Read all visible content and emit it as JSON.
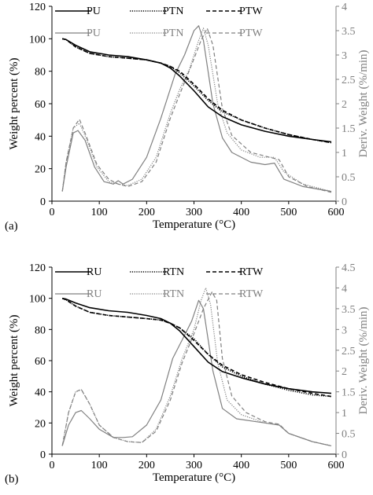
{
  "chart_data": [
    {
      "type": "line",
      "panel_label": "(a)",
      "xlabel": "Temperature (°C)",
      "ylabel": "Weight percent (%)",
      "y2label": "Deriv. Weight (%/min)",
      "xlim": [
        0,
        600
      ],
      "ylim": [
        0,
        120
      ],
      "y2lim": [
        0,
        4
      ],
      "xticks": [
        "0",
        "100",
        "200",
        "300",
        "400",
        "500",
        "600"
      ],
      "yticks": [
        "0",
        "20",
        "40",
        "60",
        "80",
        "100",
        "120"
      ],
      "y2ticks": [
        "0",
        "0.5",
        "1",
        "1.5",
        "2",
        "2.5",
        "3",
        "3.5",
        "4"
      ],
      "grid": false,
      "legend": "top",
      "colors": {
        "weight": "#000000",
        "deriv": "#808080"
      },
      "weight_series": [
        {
          "name": "PU",
          "dash": "solid",
          "points": [
            [
              22,
              100
            ],
            [
              30,
              99.5
            ],
            [
              50,
              96
            ],
            [
              80,
              92
            ],
            [
              120,
              90
            ],
            [
              160,
              89
            ],
            [
              200,
              87
            ],
            [
              230,
              85
            ],
            [
              250,
              82
            ],
            [
              270,
              77
            ],
            [
              300,
              68
            ],
            [
              330,
              58
            ],
            [
              360,
              52
            ],
            [
              400,
              47
            ],
            [
              450,
              43
            ],
            [
              500,
              40
            ],
            [
              550,
              38
            ],
            [
              590,
              36.5
            ]
          ]
        },
        {
          "name": "PTN",
          "dash": "dot",
          "points": [
            [
              22,
              100
            ],
            [
              30,
              99.5
            ],
            [
              50,
              95
            ],
            [
              80,
              91
            ],
            [
              120,
              89
            ],
            [
              160,
              88
            ],
            [
              200,
              87
            ],
            [
              230,
              85
            ],
            [
              250,
              83
            ],
            [
              270,
              79
            ],
            [
              300,
              71
            ],
            [
              330,
              62
            ],
            [
              360,
              55
            ],
            [
              400,
              50
            ],
            [
              450,
              45
            ],
            [
              500,
              41
            ],
            [
              550,
              38
            ],
            [
              590,
              36
            ]
          ]
        },
        {
          "name": "PTW",
          "dash": "dash",
          "points": [
            [
              22,
              100
            ],
            [
              30,
              99.5
            ],
            [
              50,
              95
            ],
            [
              80,
              91
            ],
            [
              120,
              89
            ],
            [
              160,
              88
            ],
            [
              200,
              87
            ],
            [
              230,
              85
            ],
            [
              250,
              83
            ],
            [
              270,
              80
            ],
            [
              300,
              72
            ],
            [
              330,
              63
            ],
            [
              360,
              56
            ],
            [
              400,
              50
            ],
            [
              450,
              45
            ],
            [
              500,
              41
            ],
            [
              550,
              38
            ],
            [
              590,
              36
            ]
          ]
        }
      ],
      "deriv_series": [
        {
          "name": "PU",
          "dash": "solid",
          "points": [
            [
              22,
              0.2
            ],
            [
              30,
              0.7
            ],
            [
              45,
              1.4
            ],
            [
              55,
              1.45
            ],
            [
              70,
              1.25
            ],
            [
              90,
              0.7
            ],
            [
              110,
              0.4
            ],
            [
              130,
              0.35
            ],
            [
              140,
              0.42
            ],
            [
              150,
              0.35
            ],
            [
              170,
              0.45
            ],
            [
              200,
              0.9
            ],
            [
              230,
              1.7
            ],
            [
              260,
              2.6
            ],
            [
              280,
              3.0
            ],
            [
              300,
              3.5
            ],
            [
              310,
              3.6
            ],
            [
              320,
              3.3
            ],
            [
              340,
              2.0
            ],
            [
              360,
              1.3
            ],
            [
              380,
              1.0
            ],
            [
              420,
              0.8
            ],
            [
              450,
              0.75
            ],
            [
              470,
              0.78
            ],
            [
              490,
              0.45
            ],
            [
              530,
              0.3
            ],
            [
              590,
              0.2
            ]
          ]
        },
        {
          "name": "PTN",
          "dash": "dot",
          "points": [
            [
              22,
              0.2
            ],
            [
              30,
              0.8
            ],
            [
              45,
              1.5
            ],
            [
              58,
              1.6
            ],
            [
              72,
              1.3
            ],
            [
              95,
              0.7
            ],
            [
              120,
              0.4
            ],
            [
              140,
              0.35
            ],
            [
              160,
              0.32
            ],
            [
              190,
              0.45
            ],
            [
              220,
              0.9
            ],
            [
              250,
              1.8
            ],
            [
              270,
              2.3
            ],
            [
              290,
              2.7
            ],
            [
              310,
              3.3
            ],
            [
              320,
              3.55
            ],
            [
              330,
              3.2
            ],
            [
              350,
              2.0
            ],
            [
              370,
              1.4
            ],
            [
              400,
              1.05
            ],
            [
              440,
              0.9
            ],
            [
              470,
              0.9
            ],
            [
              490,
              0.6
            ],
            [
              530,
              0.35
            ],
            [
              590,
              0.2
            ]
          ]
        },
        {
          "name": "PTW",
          "dash": "dash",
          "points": [
            [
              22,
              0.2
            ],
            [
              30,
              0.8
            ],
            [
              45,
              1.5
            ],
            [
              58,
              1.68
            ],
            [
              72,
              1.35
            ],
            [
              95,
              0.75
            ],
            [
              120,
              0.45
            ],
            [
              140,
              0.35
            ],
            [
              160,
              0.3
            ],
            [
              190,
              0.4
            ],
            [
              220,
              0.8
            ],
            [
              250,
              1.7
            ],
            [
              270,
              2.2
            ],
            [
              295,
              2.8
            ],
            [
              315,
              3.3
            ],
            [
              328,
              3.55
            ],
            [
              340,
              3.2
            ],
            [
              360,
              1.9
            ],
            [
              380,
              1.35
            ],
            [
              420,
              1.0
            ],
            [
              460,
              0.9
            ],
            [
              480,
              0.85
            ],
            [
              500,
              0.5
            ],
            [
              540,
              0.3
            ],
            [
              590,
              0.18
            ]
          ]
        }
      ]
    },
    {
      "type": "line",
      "panel_label": "(b)",
      "xlabel": "Temperature (°C)",
      "ylabel": "Weight percent (%)",
      "y2label": "Deriv. Weight (%/min)",
      "xlim": [
        0,
        600
      ],
      "ylim": [
        0,
        120
      ],
      "y2lim": [
        0,
        4.5
      ],
      "xticks": [
        "0",
        "100",
        "200",
        "300",
        "400",
        "500",
        "600"
      ],
      "yticks": [
        "0",
        "20",
        "40",
        "60",
        "80",
        "100",
        "120"
      ],
      "y2ticks": [
        "0",
        "0.5",
        "1",
        "1.5",
        "2",
        "2.5",
        "3",
        "3.5",
        "4",
        "4.5"
      ],
      "grid": false,
      "legend": "top",
      "colors": {
        "weight": "#000000",
        "deriv": "#808080"
      },
      "weight_series": [
        {
          "name": "RU",
          "dash": "solid",
          "points": [
            [
              22,
              100
            ],
            [
              30,
              99.5
            ],
            [
              50,
              97
            ],
            [
              80,
              94
            ],
            [
              120,
              92
            ],
            [
              160,
              91
            ],
            [
              200,
              89
            ],
            [
              230,
              87
            ],
            [
              250,
              84
            ],
            [
              270,
              79
            ],
            [
              300,
              69
            ],
            [
              330,
              59
            ],
            [
              360,
              53
            ],
            [
              400,
              49
            ],
            [
              450,
              45
            ],
            [
              500,
              42
            ],
            [
              550,
              40
            ],
            [
              590,
              39
            ]
          ]
        },
        {
          "name": "RTN",
          "dash": "dot",
          "points": [
            [
              22,
              100
            ],
            [
              30,
              99
            ],
            [
              50,
              95
            ],
            [
              80,
              91
            ],
            [
              120,
              89
            ],
            [
              160,
              88
            ],
            [
              200,
              87
            ],
            [
              230,
              86
            ],
            [
              250,
              84
            ],
            [
              270,
              81
            ],
            [
              300,
              74
            ],
            [
              330,
              64
            ],
            [
              360,
              56
            ],
            [
              400,
              50
            ],
            [
              450,
              45
            ],
            [
              500,
              41
            ],
            [
              550,
              38
            ],
            [
              590,
              37
            ]
          ]
        },
        {
          "name": "RTW",
          "dash": "dash",
          "points": [
            [
              22,
              100
            ],
            [
              30,
              99
            ],
            [
              50,
              95
            ],
            [
              80,
              91
            ],
            [
              120,
              89
            ],
            [
              160,
              88
            ],
            [
              200,
              87
            ],
            [
              230,
              86
            ],
            [
              250,
              84
            ],
            [
              270,
              81
            ],
            [
              300,
              73
            ],
            [
              330,
              64
            ],
            [
              360,
              57
            ],
            [
              400,
              51
            ],
            [
              450,
              46
            ],
            [
              500,
              42
            ],
            [
              550,
              39
            ],
            [
              590,
              37
            ]
          ]
        }
      ],
      "deriv_series": [
        {
          "name": "RU",
          "dash": "solid",
          "points": [
            [
              22,
              0.2
            ],
            [
              35,
              0.7
            ],
            [
              50,
              1.0
            ],
            [
              62,
              1.05
            ],
            [
              80,
              0.85
            ],
            [
              100,
              0.6
            ],
            [
              130,
              0.4
            ],
            [
              150,
              0.4
            ],
            [
              170,
              0.42
            ],
            [
              200,
              0.7
            ],
            [
              230,
              1.3
            ],
            [
              255,
              2.3
            ],
            [
              275,
              2.75
            ],
            [
              295,
              3.2
            ],
            [
              310,
              3.7
            ],
            [
              320,
              3.5
            ],
            [
              340,
              2.0
            ],
            [
              360,
              1.1
            ],
            [
              390,
              0.85
            ],
            [
              450,
              0.75
            ],
            [
              480,
              0.7
            ],
            [
              500,
              0.5
            ],
            [
              550,
              0.3
            ],
            [
              590,
              0.2
            ]
          ]
        },
        {
          "name": "RTN",
          "dash": "dot",
          "points": [
            [
              22,
              0.2
            ],
            [
              35,
              1.0
            ],
            [
              50,
              1.5
            ],
            [
              62,
              1.55
            ],
            [
              80,
              1.2
            ],
            [
              100,
              0.7
            ],
            [
              130,
              0.4
            ],
            [
              160,
              0.3
            ],
            [
              190,
              0.28
            ],
            [
              220,
              0.6
            ],
            [
              250,
              1.4
            ],
            [
              275,
              2.3
            ],
            [
              300,
              3.0
            ],
            [
              315,
              3.7
            ],
            [
              325,
              4.0
            ],
            [
              335,
              3.6
            ],
            [
              350,
              2.2
            ],
            [
              370,
              1.3
            ],
            [
              400,
              0.95
            ],
            [
              450,
              0.75
            ],
            [
              480,
              0.7
            ],
            [
              500,
              0.5
            ],
            [
              550,
              0.3
            ],
            [
              590,
              0.2
            ]
          ]
        },
        {
          "name": "RTW",
          "dash": "dash",
          "points": [
            [
              22,
              0.2
            ],
            [
              35,
              1.0
            ],
            [
              50,
              1.5
            ],
            [
              62,
              1.56
            ],
            [
              80,
              1.2
            ],
            [
              100,
              0.7
            ],
            [
              130,
              0.4
            ],
            [
              160,
              0.3
            ],
            [
              190,
              0.28
            ],
            [
              220,
              0.55
            ],
            [
              250,
              1.3
            ],
            [
              275,
              2.2
            ],
            [
              300,
              2.9
            ],
            [
              320,
              3.5
            ],
            [
              338,
              3.9
            ],
            [
              348,
              3.7
            ],
            [
              360,
              2.3
            ],
            [
              380,
              1.4
            ],
            [
              410,
              1.0
            ],
            [
              450,
              0.78
            ],
            [
              480,
              0.72
            ],
            [
              500,
              0.5
            ],
            [
              550,
              0.3
            ],
            [
              590,
              0.2
            ]
          ]
        }
      ]
    }
  ]
}
